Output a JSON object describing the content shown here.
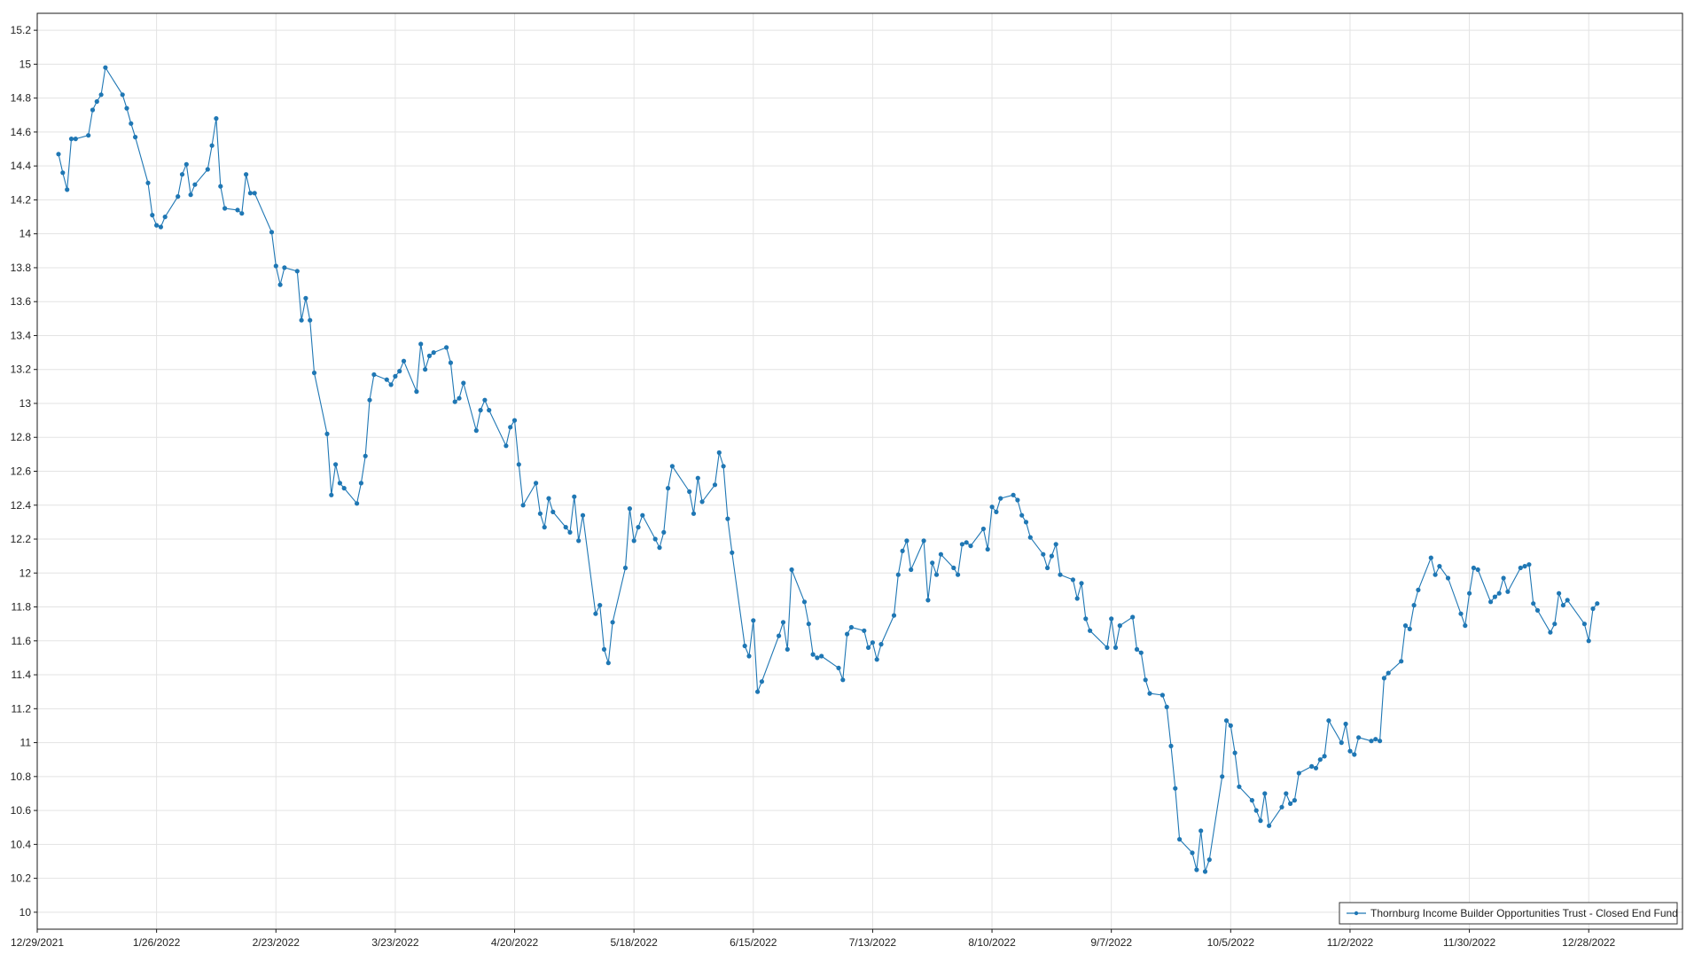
{
  "chart_data": {
    "type": "line",
    "title": "",
    "xlabel": "",
    "ylabel": "",
    "grid": true,
    "legend_position": "bottom-right",
    "line_color": "#1f77b4",
    "ylim": [
      9.9,
      15.3
    ],
    "y_ticks": [
      "10",
      "10.2",
      "10.4",
      "10.6",
      "10.8",
      "11",
      "11.2",
      "11.4",
      "11.6",
      "11.8",
      "12",
      "12.2",
      "12.4",
      "12.6",
      "12.8",
      "13",
      "13.2",
      "13.4",
      "13.6",
      "13.8",
      "14",
      "14.2",
      "14.4",
      "14.6",
      "14.8",
      "15",
      "15.2"
    ],
    "xlim": [
      "2021-12-29",
      "2023-01-19"
    ],
    "x_ticks": [
      {
        "date": "2021-12-29",
        "label": "12/29/2021"
      },
      {
        "date": "2022-01-26",
        "label": "1/26/2022"
      },
      {
        "date": "2022-02-23",
        "label": "2/23/2022"
      },
      {
        "date": "2022-03-23",
        "label": "3/23/2022"
      },
      {
        "date": "2022-04-20",
        "label": "4/20/2022"
      },
      {
        "date": "2022-05-18",
        "label": "5/18/2022"
      },
      {
        "date": "2022-06-15",
        "label": "6/15/2022"
      },
      {
        "date": "2022-07-13",
        "label": "7/13/2022"
      },
      {
        "date": "2022-08-10",
        "label": "8/10/2022"
      },
      {
        "date": "2022-09-07",
        "label": "9/7/2022"
      },
      {
        "date": "2022-10-05",
        "label": "10/5/2022"
      },
      {
        "date": "2022-11-02",
        "label": "11/2/2022"
      },
      {
        "date": "2022-11-30",
        "label": "11/30/2022"
      },
      {
        "date": "2022-12-28",
        "label": "12/28/2022"
      }
    ],
    "series": [
      {
        "name": "Thornburg Income Builder Opportunities Trust - Closed End Fund",
        "points": [
          [
            "2022-01-03",
            14.47
          ],
          [
            "2022-01-04",
            14.36
          ],
          [
            "2022-01-05",
            14.26
          ],
          [
            "2022-01-06",
            14.56
          ],
          [
            "2022-01-07",
            14.56
          ],
          [
            "2022-01-10",
            14.58
          ],
          [
            "2022-01-11",
            14.73
          ],
          [
            "2022-01-12",
            14.78
          ],
          [
            "2022-01-13",
            14.82
          ],
          [
            "2022-01-14",
            14.98
          ],
          [
            "2022-01-18",
            14.82
          ],
          [
            "2022-01-19",
            14.74
          ],
          [
            "2022-01-20",
            14.65
          ],
          [
            "2022-01-21",
            14.57
          ],
          [
            "2022-01-24",
            14.3
          ],
          [
            "2022-01-25",
            14.11
          ],
          [
            "2022-01-26",
            14.05
          ],
          [
            "2022-01-27",
            14.04
          ],
          [
            "2022-01-28",
            14.1
          ],
          [
            "2022-01-31",
            14.22
          ],
          [
            "2022-02-01",
            14.35
          ],
          [
            "2022-02-02",
            14.41
          ],
          [
            "2022-02-03",
            14.23
          ],
          [
            "2022-02-04",
            14.29
          ],
          [
            "2022-02-07",
            14.38
          ],
          [
            "2022-02-08",
            14.52
          ],
          [
            "2022-02-09",
            14.68
          ],
          [
            "2022-02-10",
            14.28
          ],
          [
            "2022-02-11",
            14.15
          ],
          [
            "2022-02-14",
            14.14
          ],
          [
            "2022-02-15",
            14.12
          ],
          [
            "2022-02-16",
            14.35
          ],
          [
            "2022-02-17",
            14.24
          ],
          [
            "2022-02-18",
            14.24
          ],
          [
            "2022-02-22",
            14.01
          ],
          [
            "2022-02-23",
            13.81
          ],
          [
            "2022-02-24",
            13.7
          ],
          [
            "2022-02-25",
            13.8
          ],
          [
            "2022-02-28",
            13.78
          ],
          [
            "2022-03-01",
            13.49
          ],
          [
            "2022-03-02",
            13.62
          ],
          [
            "2022-03-03",
            13.49
          ],
          [
            "2022-03-04",
            13.18
          ],
          [
            "2022-03-07",
            12.82
          ],
          [
            "2022-03-08",
            12.46
          ],
          [
            "2022-03-09",
            12.64
          ],
          [
            "2022-03-10",
            12.53
          ],
          [
            "2022-03-11",
            12.5
          ],
          [
            "2022-03-14",
            12.41
          ],
          [
            "2022-03-15",
            12.53
          ],
          [
            "2022-03-16",
            12.69
          ],
          [
            "2022-03-17",
            13.02
          ],
          [
            "2022-03-18",
            13.17
          ],
          [
            "2022-03-21",
            13.14
          ],
          [
            "2022-03-22",
            13.11
          ],
          [
            "2022-03-23",
            13.16
          ],
          [
            "2022-03-24",
            13.19
          ],
          [
            "2022-03-25",
            13.25
          ],
          [
            "2022-03-28",
            13.07
          ],
          [
            "2022-03-29",
            13.35
          ],
          [
            "2022-03-30",
            13.2
          ],
          [
            "2022-03-31",
            13.28
          ],
          [
            "2022-04-01",
            13.3
          ],
          [
            "2022-04-04",
            13.33
          ],
          [
            "2022-04-05",
            13.24
          ],
          [
            "2022-04-06",
            13.01
          ],
          [
            "2022-04-07",
            13.03
          ],
          [
            "2022-04-08",
            13.12
          ],
          [
            "2022-04-11",
            12.84
          ],
          [
            "2022-04-12",
            12.96
          ],
          [
            "2022-04-13",
            13.02
          ],
          [
            "2022-04-14",
            12.96
          ],
          [
            "2022-04-18",
            12.75
          ],
          [
            "2022-04-19",
            12.86
          ],
          [
            "2022-04-20",
            12.9
          ],
          [
            "2022-04-21",
            12.64
          ],
          [
            "2022-04-22",
            12.4
          ],
          [
            "2022-04-25",
            12.53
          ],
          [
            "2022-04-26",
            12.35
          ],
          [
            "2022-04-27",
            12.27
          ],
          [
            "2022-04-28",
            12.44
          ],
          [
            "2022-04-29",
            12.36
          ],
          [
            "2022-05-02",
            12.27
          ],
          [
            "2022-05-03",
            12.24
          ],
          [
            "2022-05-04",
            12.45
          ],
          [
            "2022-05-05",
            12.19
          ],
          [
            "2022-05-06",
            12.34
          ],
          [
            "2022-05-09",
            11.76
          ],
          [
            "2022-05-10",
            11.81
          ],
          [
            "2022-05-11",
            11.55
          ],
          [
            "2022-05-12",
            11.47
          ],
          [
            "2022-05-13",
            11.71
          ],
          [
            "2022-05-16",
            12.03
          ],
          [
            "2022-05-17",
            12.38
          ],
          [
            "2022-05-18",
            12.19
          ],
          [
            "2022-05-19",
            12.27
          ],
          [
            "2022-05-20",
            12.34
          ],
          [
            "2022-05-23",
            12.2
          ],
          [
            "2022-05-24",
            12.15
          ],
          [
            "2022-05-25",
            12.24
          ],
          [
            "2022-05-26",
            12.5
          ],
          [
            "2022-05-27",
            12.63
          ],
          [
            "2022-05-31",
            12.48
          ],
          [
            "2022-06-01",
            12.35
          ],
          [
            "2022-06-02",
            12.56
          ],
          [
            "2022-06-03",
            12.42
          ],
          [
            "2022-06-06",
            12.52
          ],
          [
            "2022-06-07",
            12.71
          ],
          [
            "2022-06-08",
            12.63
          ],
          [
            "2022-06-09",
            12.32
          ],
          [
            "2022-06-10",
            12.12
          ],
          [
            "2022-06-13",
            11.57
          ],
          [
            "2022-06-14",
            11.51
          ],
          [
            "2022-06-15",
            11.72
          ],
          [
            "2022-06-16",
            11.3
          ],
          [
            "2022-06-17",
            11.36
          ],
          [
            "2022-06-21",
            11.63
          ],
          [
            "2022-06-22",
            11.71
          ],
          [
            "2022-06-23",
            11.55
          ],
          [
            "2022-06-24",
            12.02
          ],
          [
            "2022-06-27",
            11.83
          ],
          [
            "2022-06-28",
            11.7
          ],
          [
            "2022-06-29",
            11.52
          ],
          [
            "2022-06-30",
            11.5
          ],
          [
            "2022-07-01",
            11.51
          ],
          [
            "2022-07-05",
            11.44
          ],
          [
            "2022-07-06",
            11.37
          ],
          [
            "2022-07-07",
            11.64
          ],
          [
            "2022-07-08",
            11.68
          ],
          [
            "2022-07-11",
            11.66
          ],
          [
            "2022-07-12",
            11.56
          ],
          [
            "2022-07-13",
            11.59
          ],
          [
            "2022-07-14",
            11.49
          ],
          [
            "2022-07-15",
            11.58
          ],
          [
            "2022-07-18",
            11.75
          ],
          [
            "2022-07-19",
            11.99
          ],
          [
            "2022-07-20",
            12.13
          ],
          [
            "2022-07-21",
            12.19
          ],
          [
            "2022-07-22",
            12.02
          ],
          [
            "2022-07-25",
            12.19
          ],
          [
            "2022-07-26",
            11.84
          ],
          [
            "2022-07-27",
            12.06
          ],
          [
            "2022-07-28",
            11.99
          ],
          [
            "2022-07-29",
            12.11
          ],
          [
            "2022-08-01",
            12.03
          ],
          [
            "2022-08-02",
            11.99
          ],
          [
            "2022-08-03",
            12.17
          ],
          [
            "2022-08-04",
            12.18
          ],
          [
            "2022-08-05",
            12.16
          ],
          [
            "2022-08-08",
            12.26
          ],
          [
            "2022-08-09",
            12.14
          ],
          [
            "2022-08-10",
            12.39
          ],
          [
            "2022-08-11",
            12.36
          ],
          [
            "2022-08-12",
            12.44
          ],
          [
            "2022-08-15",
            12.46
          ],
          [
            "2022-08-16",
            12.43
          ],
          [
            "2022-08-17",
            12.34
          ],
          [
            "2022-08-18",
            12.3
          ],
          [
            "2022-08-19",
            12.21
          ],
          [
            "2022-08-22",
            12.11
          ],
          [
            "2022-08-23",
            12.03
          ],
          [
            "2022-08-24",
            12.1
          ],
          [
            "2022-08-25",
            12.17
          ],
          [
            "2022-08-26",
            11.99
          ],
          [
            "2022-08-29",
            11.96
          ],
          [
            "2022-08-30",
            11.85
          ],
          [
            "2022-08-31",
            11.94
          ],
          [
            "2022-09-01",
            11.73
          ],
          [
            "2022-09-02",
            11.66
          ],
          [
            "2022-09-06",
            11.56
          ],
          [
            "2022-09-07",
            11.73
          ],
          [
            "2022-09-08",
            11.56
          ],
          [
            "2022-09-09",
            11.69
          ],
          [
            "2022-09-12",
            11.74
          ],
          [
            "2022-09-13",
            11.55
          ],
          [
            "2022-09-14",
            11.53
          ],
          [
            "2022-09-15",
            11.37
          ],
          [
            "2022-09-16",
            11.29
          ],
          [
            "2022-09-19",
            11.28
          ],
          [
            "2022-09-20",
            11.21
          ],
          [
            "2022-09-21",
            10.98
          ],
          [
            "2022-09-22",
            10.73
          ],
          [
            "2022-09-23",
            10.43
          ],
          [
            "2022-09-26",
            10.35
          ],
          [
            "2022-09-27",
            10.25
          ],
          [
            "2022-09-28",
            10.48
          ],
          [
            "2022-09-29",
            10.24
          ],
          [
            "2022-09-30",
            10.31
          ],
          [
            "2022-10-03",
            10.8
          ],
          [
            "2022-10-04",
            11.13
          ],
          [
            "2022-10-05",
            11.1
          ],
          [
            "2022-10-06",
            10.94
          ],
          [
            "2022-10-07",
            10.74
          ],
          [
            "2022-10-10",
            10.66
          ],
          [
            "2022-10-11",
            10.6
          ],
          [
            "2022-10-12",
            10.54
          ],
          [
            "2022-10-13",
            10.7
          ],
          [
            "2022-10-14",
            10.51
          ],
          [
            "2022-10-17",
            10.62
          ],
          [
            "2022-10-18",
            10.7
          ],
          [
            "2022-10-19",
            10.64
          ],
          [
            "2022-10-20",
            10.66
          ],
          [
            "2022-10-21",
            10.82
          ],
          [
            "2022-10-24",
            10.86
          ],
          [
            "2022-10-25",
            10.85
          ],
          [
            "2022-10-26",
            10.9
          ],
          [
            "2022-10-27",
            10.92
          ],
          [
            "2022-10-28",
            11.13
          ],
          [
            "2022-10-31",
            11.0
          ],
          [
            "2022-11-01",
            11.11
          ],
          [
            "2022-11-02",
            10.95
          ],
          [
            "2022-11-03",
            10.93
          ],
          [
            "2022-11-04",
            11.03
          ],
          [
            "2022-11-07",
            11.01
          ],
          [
            "2022-11-08",
            11.02
          ],
          [
            "2022-11-09",
            11.01
          ],
          [
            "2022-11-10",
            11.38
          ],
          [
            "2022-11-11",
            11.41
          ],
          [
            "2022-11-14",
            11.48
          ],
          [
            "2022-11-15",
            11.69
          ],
          [
            "2022-11-16",
            11.67
          ],
          [
            "2022-11-17",
            11.81
          ],
          [
            "2022-11-18",
            11.9
          ],
          [
            "2022-11-21",
            12.09
          ],
          [
            "2022-11-22",
            11.99
          ],
          [
            "2022-11-23",
            12.04
          ],
          [
            "2022-11-25",
            11.97
          ],
          [
            "2022-11-28",
            11.76
          ],
          [
            "2022-11-29",
            11.69
          ],
          [
            "2022-11-30",
            11.88
          ],
          [
            "2022-12-01",
            12.03
          ],
          [
            "2022-12-02",
            12.02
          ],
          [
            "2022-12-05",
            11.83
          ],
          [
            "2022-12-06",
            11.86
          ],
          [
            "2022-12-07",
            11.88
          ],
          [
            "2022-12-08",
            11.97
          ],
          [
            "2022-12-09",
            11.89
          ],
          [
            "2022-12-12",
            12.03
          ],
          [
            "2022-12-13",
            12.04
          ],
          [
            "2022-12-14",
            12.05
          ],
          [
            "2022-12-15",
            11.82
          ],
          [
            "2022-12-16",
            11.78
          ],
          [
            "2022-12-19",
            11.65
          ],
          [
            "2022-12-20",
            11.7
          ],
          [
            "2022-12-21",
            11.88
          ],
          [
            "2022-12-22",
            11.81
          ],
          [
            "2022-12-23",
            11.84
          ],
          [
            "2022-12-27",
            11.7
          ],
          [
            "2022-12-28",
            11.6
          ],
          [
            "2022-12-29",
            11.79
          ],
          [
            "2022-12-30",
            11.82
          ]
        ]
      }
    ]
  }
}
